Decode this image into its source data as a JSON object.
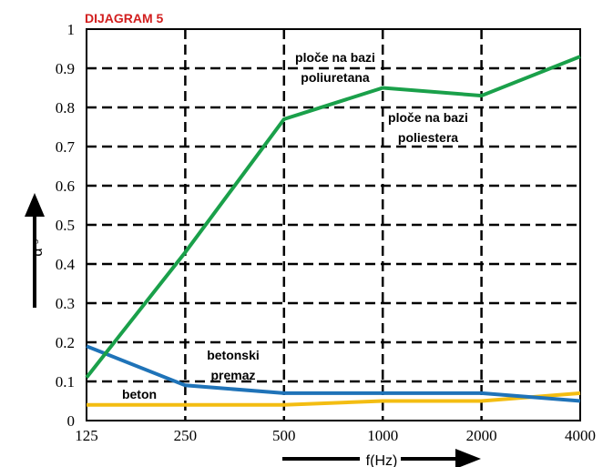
{
  "chart_data": {
    "type": "line",
    "title": "DIJAGRAM 5",
    "xlabel": "f(Hz)",
    "ylabel": "α",
    "ylabel_sub": "s",
    "x_scale": "log",
    "categories": [
      "125",
      "250",
      "500",
      "1000",
      "2000",
      "4000"
    ],
    "yticks": [
      "0",
      "0.1",
      "0.2",
      "0.3",
      "0.4",
      "0.5",
      "0.6",
      "0.7",
      "0.8",
      "0.9",
      "1"
    ],
    "ylim": [
      0,
      1
    ],
    "grid": true,
    "series": [
      {
        "color": "#1aa04a",
        "values": [
          0.11,
          0.43,
          0.77,
          0.85,
          0.83,
          0.93
        ]
      },
      {
        "color": "#1f73b8",
        "values": [
          0.19,
          0.09,
          0.07,
          0.07,
          0.07,
          0.05
        ]
      },
      {
        "color": "#f3bd12",
        "values": [
          0.04,
          0.04,
          0.04,
          0.05,
          0.05,
          0.07
        ]
      }
    ],
    "annotations": [
      {
        "id": "poliuretana",
        "lines": [
          "ploče na bazi",
          "poliuretana"
        ]
      },
      {
        "id": "poliestera",
        "lines": [
          "ploče na bazi",
          "poliestera"
        ]
      },
      {
        "id": "premaz",
        "lines": [
          "betonski",
          "premaz"
        ]
      },
      {
        "id": "beton",
        "lines": [
          "beton"
        ]
      }
    ]
  }
}
